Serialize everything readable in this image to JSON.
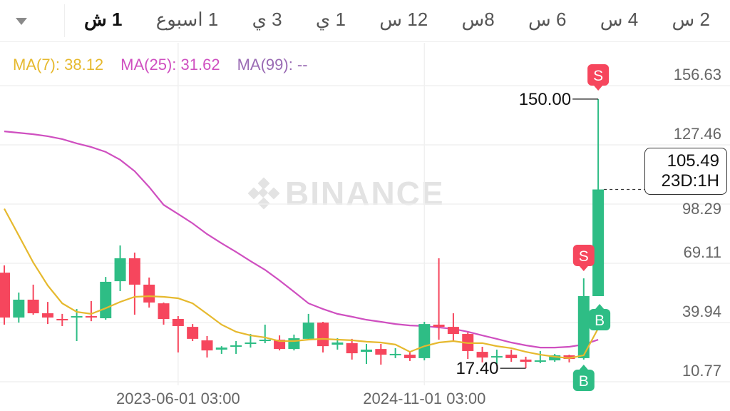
{
  "timeframes": {
    "items": [
      {
        "label": "1 ش",
        "active": true
      },
      {
        "label": "1 اسبوع",
        "active": false
      },
      {
        "label": "3 ي",
        "active": false
      },
      {
        "label": "1 ي",
        "active": false
      },
      {
        "label": "12 س",
        "active": false
      },
      {
        "label": "8س",
        "active": false
      },
      {
        "label": "6 س",
        "active": false
      },
      {
        "label": "4 س",
        "active": false
      },
      {
        "label": "2 س",
        "active": false
      }
    ],
    "dropdown_icon": "caret-down-icon"
  },
  "legend": {
    "ma7": "MA(7): 38.12",
    "ma25": "MA(25): 31.62",
    "ma99": "MA(99): --",
    "colors": {
      "ma7": "#e6b92e",
      "ma25": "#cf4fc0",
      "ma99": "#9a6bb4"
    }
  },
  "watermark": "BINANCE",
  "current_price": {
    "value": "105.49",
    "countdown": "23D:1H"
  },
  "chart_data": {
    "type": "candlestick",
    "y_ticks": [
      "156.63",
      "127.46",
      "98.29",
      "69.11",
      "39.94",
      "10.77"
    ],
    "ylim": [
      10.77,
      156.63
    ],
    "x_ticks": [
      {
        "label": "2023-06-01 03:00",
        "index": 12
      },
      {
        "label": "2024-11-01 03:00",
        "index": 29
      }
    ],
    "high_label": "150.00",
    "low_label": "17.40",
    "colors": {
      "up": "#2ebd85",
      "down": "#f6465d"
    },
    "candles": [
      [
        64.5,
        42.4,
        68.1,
        38.9
      ],
      [
        42.4,
        51.2,
        54.7,
        39.9
      ],
      [
        51.2,
        44.5,
        58.6,
        43.8
      ],
      [
        44.5,
        42.4,
        50.1,
        39.2
      ],
      [
        41.7,
        41.35,
        44.2,
        38.2
      ],
      [
        42.4,
        43.1,
        46.6,
        30.8
      ],
      [
        43.1,
        42.4,
        50.5,
        40.6
      ],
      [
        42.05,
        60.0,
        62.4,
        41.35
      ],
      [
        60.3,
        71.6,
        77.9,
        55.4
      ],
      [
        71.6,
        58.6,
        74.4,
        43.8
      ],
      [
        58.6,
        49.8,
        62.1,
        47.3
      ],
      [
        49.4,
        41.7,
        49.8,
        38.9
      ],
      [
        41.7,
        38.2,
        43.1,
        25.2
      ],
      [
        37.8,
        31.9,
        39.2,
        30.8
      ],
      [
        31.15,
        26.2,
        33.3,
        22.7
      ],
      [
        26.6,
        27.6,
        28.3,
        24.5
      ],
      [
        28.0,
        28.7,
        30.8,
        24.5
      ],
      [
        29.75,
        30.1,
        34.3,
        27.6
      ],
      [
        30.8,
        31.5,
        38.9,
        29.75
      ],
      [
        31.5,
        26.9,
        33.6,
        26.2
      ],
      [
        26.9,
        32.2,
        34.0,
        26.2
      ],
      [
        31.9,
        39.9,
        44.2,
        31.5
      ],
      [
        39.9,
        28.3,
        40.3,
        25.2
      ],
      [
        29.05,
        30.1,
        32.2,
        26.6
      ],
      [
        29.75,
        24.8,
        31.9,
        21.7
      ],
      [
        25.5,
        26.6,
        29.4,
        19.55
      ],
      [
        26.9,
        24.1,
        29.4,
        19.2
      ],
      [
        24.1,
        24.5,
        27.3,
        22.4
      ],
      [
        24.1,
        22.4,
        25.9,
        21.0
      ],
      [
        22.4,
        39.2,
        40.3,
        21.3
      ],
      [
        38.9,
        37.8,
        71.6,
        31.5
      ],
      [
        37.8,
        34.3,
        44.5,
        30.8
      ],
      [
        34.3,
        25.9,
        35.0,
        22.0
      ],
      [
        25.5,
        22.7,
        28.0,
        20.3
      ],
      [
        22.7,
        23.4,
        26.6,
        19.55
      ],
      [
        24.1,
        22.4,
        26.6,
        20.6
      ],
      [
        21.7,
        20.6,
        23.1,
        17.4
      ],
      [
        20.6,
        21.3,
        25.9,
        19.9
      ],
      [
        21.3,
        23.8,
        24.5,
        20.6
      ],
      [
        23.8,
        22.0,
        24.1,
        20.3
      ],
      [
        22.4,
        52.95,
        61.7,
        21.7
      ],
      [
        52.95,
        105.49,
        150.0,
        52.95
      ]
    ],
    "ma7": [
      96.0,
      82.8,
      69.5,
      58.2,
      49.4,
      45.2,
      44.2,
      47.0,
      50.1,
      52.6,
      52.9,
      52.6,
      51.9,
      49.4,
      44.2,
      38.9,
      35.4,
      33.6,
      32.6,
      30.8,
      30.8,
      31.5,
      31.9,
      31.5,
      31.2,
      30.5,
      30.1,
      29.1,
      25.5,
      28.3,
      30.1,
      30.8,
      29.8,
      29.8,
      28.3,
      27.3,
      25.5,
      24.1,
      23.1,
      22.4,
      23.8,
      37.1
    ],
    "ma25": [
      134.1,
      133.4,
      132.7,
      131.7,
      130.3,
      128.2,
      126.4,
      124.0,
      120.1,
      114.5,
      106.7,
      97.9,
      93.4,
      88.8,
      83.5,
      79.0,
      74.7,
      70.2,
      65.9,
      60.7,
      55.1,
      49.4,
      46.6,
      44.2,
      42.8,
      41.3,
      40.3,
      39.2,
      38.5,
      38.2,
      37.5,
      36.8,
      35.4,
      33.6,
      31.9,
      30.1,
      28.7,
      27.6,
      27.6,
      28.0,
      29.1,
      31.5
    ],
    "trade_markers": [
      {
        "label": "S",
        "index": 40,
        "type": "sell"
      },
      {
        "label": "S",
        "index": 41,
        "type": "sell"
      },
      {
        "label": "B",
        "index": 41,
        "type": "buy"
      },
      {
        "label": "B",
        "index": 40,
        "type": "buy"
      }
    ]
  }
}
